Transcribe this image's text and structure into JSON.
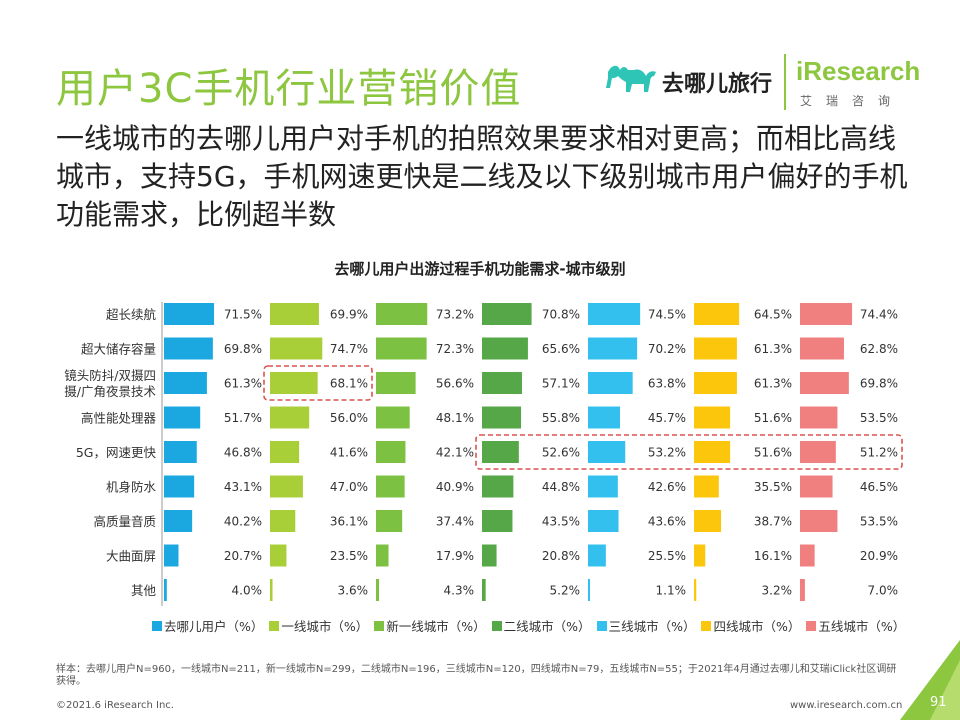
{
  "page": {
    "title": "用户3C手机行业营销价值",
    "subtitle": "一线城市的去哪儿用户对手机的拍照效果要求相对更高；而相比高线城市，支持5G，手机网速更快是二线及以下级别城市用户偏好的手机功能需求，比例超半数",
    "footnote": "样本：去哪儿用户N=960，一线城市N=211，新一线城市N=299，二线城市N=196，三线城市N=120，四线城市N=79，五线城市N=55；于2021年4月通过去哪儿和艾瑞iClick社区调研获得。",
    "copyright": "©2021.6 iResearch Inc.",
    "website": "www.iresearch.com.cn",
    "page_number": "91"
  },
  "logos": {
    "qunar": "去哪儿旅行",
    "iresearch": "iResearch",
    "iresearch_cn": "艾瑞咨询"
  },
  "chart_data": {
    "type": "bar",
    "title": "去哪儿用户出游过程手机功能需求-城市级别",
    "categories": [
      "超长续航",
      "超大储存容量",
      "镜头防抖/双摄四摄/广角夜景技术",
      "高性能处理器",
      "5G，网速更快",
      "机身防水",
      "高质量音质",
      "大曲面屏",
      "其他"
    ],
    "category_lines": [
      [
        "超长续航"
      ],
      [
        "超大储存容量"
      ],
      [
        "镜头防抖/双摄四",
        "摄/广角夜景技术"
      ],
      [
        "高性能处理器"
      ],
      [
        "5G，网速更快"
      ],
      [
        "机身防水"
      ],
      [
        "高质量音质"
      ],
      [
        "大曲面屏"
      ],
      [
        "其他"
      ]
    ],
    "unit": "%",
    "xlim": [
      0,
      100
    ],
    "series": [
      {
        "name": "去哪儿用户（%）",
        "color": "#1ba8e0",
        "values": [
          71.5,
          69.8,
          61.3,
          51.7,
          46.8,
          43.1,
          40.2,
          20.7,
          4.0
        ]
      },
      {
        "name": "一线城市（%）",
        "color": "#a9cf38",
        "values": [
          69.9,
          74.7,
          68.1,
          56.0,
          41.6,
          47.0,
          36.1,
          23.5,
          3.6
        ]
      },
      {
        "name": "新一线城市（%）",
        "color": "#7dc142",
        "values": [
          73.2,
          72.3,
          56.6,
          48.1,
          42.1,
          40.9,
          37.4,
          17.9,
          4.3
        ]
      },
      {
        "name": "二线城市（%）",
        "color": "#55a748",
        "values": [
          70.8,
          65.6,
          57.1,
          55.8,
          52.6,
          44.8,
          43.5,
          20.8,
          5.2
        ]
      },
      {
        "name": "三线城市（%）",
        "color": "#34c0ee",
        "values": [
          74.5,
          70.2,
          63.8,
          45.7,
          53.2,
          42.6,
          43.6,
          25.5,
          1.1
        ]
      },
      {
        "name": "四线城市（%）",
        "color": "#fcc60c",
        "values": [
          64.5,
          61.3,
          61.3,
          51.6,
          51.6,
          35.5,
          38.7,
          16.1,
          3.2
        ]
      },
      {
        "name": "五线城市（%）",
        "color": "#f08080",
        "values": [
          74.4,
          62.8,
          69.8,
          53.5,
          51.2,
          46.5,
          53.5,
          20.9,
          7.0
        ]
      }
    ],
    "highlights": [
      {
        "series": [
          1
        ],
        "category": 2
      },
      {
        "series": [
          3,
          4,
          5,
          6
        ],
        "category": 4
      }
    ]
  }
}
